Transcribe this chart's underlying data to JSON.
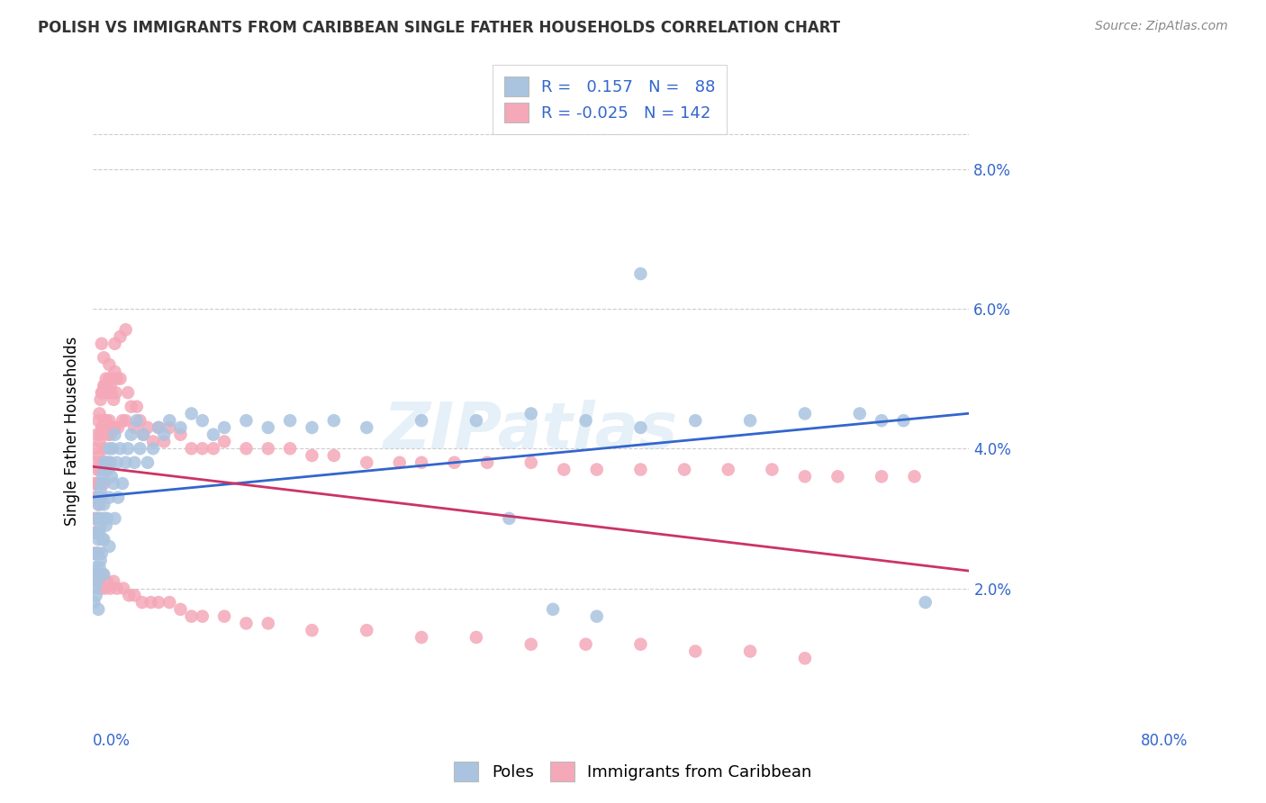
{
  "title": "POLISH VS IMMIGRANTS FROM CARIBBEAN SINGLE FATHER HOUSEHOLDS CORRELATION CHART",
  "source": "Source: ZipAtlas.com",
  "ylabel": "Single Father Households",
  "xlabel_bottom_left": "0.0%",
  "xlabel_bottom_right": "80.0%",
  "legend_label_blue": "Poles",
  "legend_label_pink": "Immigrants from Caribbean",
  "r_blue": 0.157,
  "n_blue": 88,
  "r_pink": -0.025,
  "n_pink": 142,
  "blue_color": "#aac4e0",
  "pink_color": "#f4a8b8",
  "trend_blue": "#3366cc",
  "trend_pink": "#cc3366",
  "background": "#ffffff",
  "grid_color": "#cccccc",
  "watermark": "ZIPatlas",
  "xmin": 0.0,
  "xmax": 0.8,
  "ymin": 0.0,
  "ymax": 0.085,
  "yticks": [
    0.02,
    0.04,
    0.06,
    0.08
  ],
  "ytick_labels": [
    "2.0%",
    "4.0%",
    "6.0%",
    "8.0%"
  ],
  "blue_points_x": [
    0.001,
    0.001,
    0.002,
    0.002,
    0.003,
    0.003,
    0.003,
    0.004,
    0.004,
    0.004,
    0.005,
    0.005,
    0.005,
    0.005,
    0.006,
    0.006,
    0.006,
    0.007,
    0.007,
    0.007,
    0.008,
    0.008,
    0.008,
    0.009,
    0.009,
    0.01,
    0.01,
    0.01,
    0.01,
    0.011,
    0.011,
    0.012,
    0.012,
    0.013,
    0.013,
    0.014,
    0.015,
    0.015,
    0.015,
    0.016,
    0.017,
    0.018,
    0.019,
    0.02,
    0.02,
    0.022,
    0.023,
    0.025,
    0.027,
    0.03,
    0.032,
    0.035,
    0.038,
    0.04,
    0.043,
    0.046,
    0.05,
    0.055,
    0.06,
    0.065,
    0.07,
    0.08,
    0.09,
    0.1,
    0.11,
    0.12,
    0.14,
    0.16,
    0.18,
    0.2,
    0.22,
    0.25,
    0.3,
    0.35,
    0.4,
    0.45,
    0.5,
    0.55,
    0.6,
    0.65,
    0.7,
    0.72,
    0.74,
    0.76,
    0.5,
    0.38,
    0.42,
    0.46
  ],
  "blue_points_y": [
    0.022,
    0.018,
    0.025,
    0.02,
    0.028,
    0.023,
    0.019,
    0.03,
    0.025,
    0.021,
    0.032,
    0.027,
    0.022,
    0.017,
    0.033,
    0.028,
    0.023,
    0.034,
    0.029,
    0.024,
    0.035,
    0.03,
    0.025,
    0.036,
    0.027,
    0.037,
    0.032,
    0.027,
    0.022,
    0.038,
    0.03,
    0.037,
    0.029,
    0.038,
    0.03,
    0.037,
    0.04,
    0.033,
    0.026,
    0.038,
    0.036,
    0.04,
    0.035,
    0.042,
    0.03,
    0.038,
    0.033,
    0.04,
    0.035,
    0.038,
    0.04,
    0.042,
    0.038,
    0.044,
    0.04,
    0.042,
    0.038,
    0.04,
    0.043,
    0.042,
    0.044,
    0.043,
    0.045,
    0.044,
    0.042,
    0.043,
    0.044,
    0.043,
    0.044,
    0.043,
    0.044,
    0.043,
    0.044,
    0.044,
    0.045,
    0.044,
    0.043,
    0.044,
    0.044,
    0.045,
    0.045,
    0.044,
    0.044,
    0.018,
    0.065,
    0.03,
    0.017,
    0.016
  ],
  "pink_points_x": [
    0.001,
    0.001,
    0.001,
    0.002,
    0.002,
    0.002,
    0.002,
    0.003,
    0.003,
    0.003,
    0.003,
    0.004,
    0.004,
    0.004,
    0.004,
    0.004,
    0.005,
    0.005,
    0.005,
    0.005,
    0.005,
    0.006,
    0.006,
    0.006,
    0.006,
    0.007,
    0.007,
    0.007,
    0.007,
    0.008,
    0.008,
    0.008,
    0.008,
    0.009,
    0.009,
    0.009,
    0.01,
    0.01,
    0.01,
    0.01,
    0.011,
    0.011,
    0.011,
    0.012,
    0.012,
    0.012,
    0.013,
    0.013,
    0.014,
    0.014,
    0.015,
    0.015,
    0.015,
    0.016,
    0.016,
    0.017,
    0.018,
    0.018,
    0.019,
    0.02,
    0.02,
    0.021,
    0.022,
    0.023,
    0.025,
    0.027,
    0.03,
    0.032,
    0.035,
    0.038,
    0.04,
    0.043,
    0.046,
    0.05,
    0.055,
    0.06,
    0.065,
    0.07,
    0.08,
    0.09,
    0.1,
    0.11,
    0.12,
    0.14,
    0.16,
    0.18,
    0.2,
    0.22,
    0.25,
    0.28,
    0.3,
    0.33,
    0.36,
    0.4,
    0.43,
    0.46,
    0.5,
    0.54,
    0.58,
    0.62,
    0.65,
    0.68,
    0.72,
    0.75,
    0.01,
    0.02,
    0.03,
    0.015,
    0.025,
    0.008,
    0.005,
    0.006,
    0.007,
    0.009,
    0.011,
    0.013,
    0.016,
    0.019,
    0.022,
    0.028,
    0.033,
    0.038,
    0.045,
    0.053,
    0.06,
    0.07,
    0.08,
    0.09,
    0.1,
    0.12,
    0.14,
    0.16,
    0.2,
    0.25,
    0.3,
    0.35,
    0.4,
    0.45,
    0.5,
    0.55,
    0.6,
    0.65
  ],
  "pink_points_y": [
    0.035,
    0.03,
    0.025,
    0.038,
    0.033,
    0.028,
    0.022,
    0.04,
    0.035,
    0.03,
    0.025,
    0.042,
    0.037,
    0.033,
    0.028,
    0.022,
    0.044,
    0.039,
    0.035,
    0.03,
    0.025,
    0.045,
    0.041,
    0.037,
    0.032,
    0.047,
    0.042,
    0.038,
    0.033,
    0.048,
    0.043,
    0.038,
    0.033,
    0.048,
    0.043,
    0.038,
    0.049,
    0.044,
    0.04,
    0.035,
    0.049,
    0.044,
    0.038,
    0.05,
    0.044,
    0.038,
    0.049,
    0.043,
    0.048,
    0.042,
    0.05,
    0.044,
    0.038,
    0.049,
    0.042,
    0.048,
    0.05,
    0.043,
    0.047,
    0.051,
    0.043,
    0.048,
    0.05,
    0.043,
    0.05,
    0.044,
    0.044,
    0.048,
    0.046,
    0.043,
    0.046,
    0.044,
    0.042,
    0.043,
    0.041,
    0.043,
    0.041,
    0.043,
    0.042,
    0.04,
    0.04,
    0.04,
    0.041,
    0.04,
    0.04,
    0.04,
    0.039,
    0.039,
    0.038,
    0.038,
    0.038,
    0.038,
    0.038,
    0.038,
    0.037,
    0.037,
    0.037,
    0.037,
    0.037,
    0.037,
    0.036,
    0.036,
    0.036,
    0.036,
    0.053,
    0.055,
    0.057,
    0.052,
    0.056,
    0.055,
    0.022,
    0.021,
    0.02,
    0.022,
    0.02,
    0.021,
    0.02,
    0.021,
    0.02,
    0.02,
    0.019,
    0.019,
    0.018,
    0.018,
    0.018,
    0.018,
    0.017,
    0.016,
    0.016,
    0.016,
    0.015,
    0.015,
    0.014,
    0.014,
    0.013,
    0.013,
    0.012,
    0.012,
    0.012,
    0.011,
    0.011,
    0.01
  ]
}
